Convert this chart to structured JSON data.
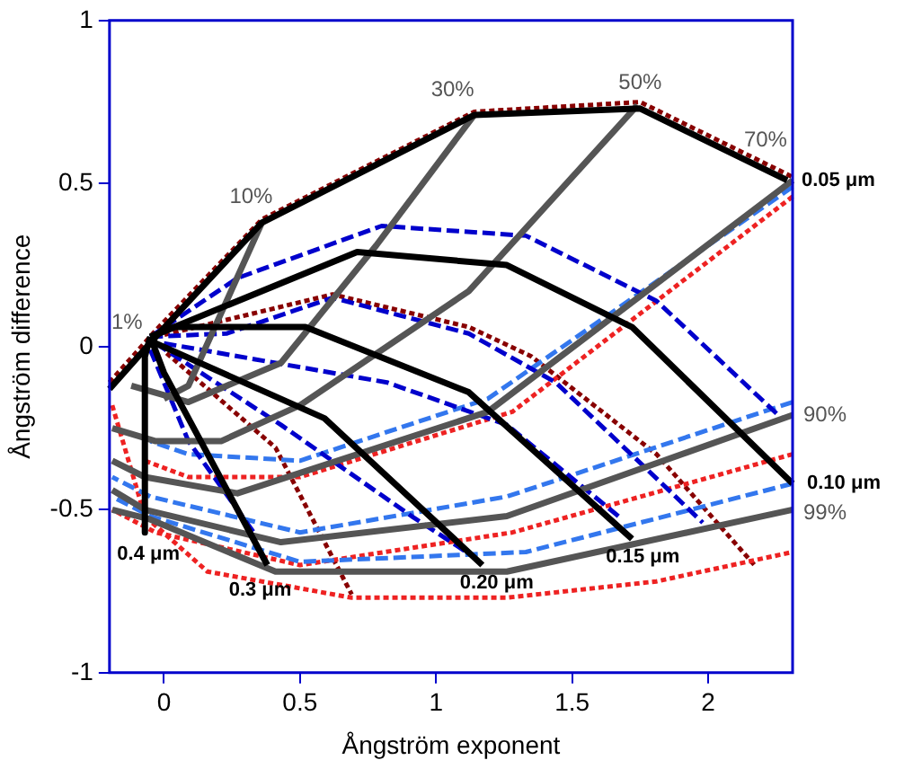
{
  "chart_data": {
    "type": "line",
    "xlabel": "Ångström exponent",
    "ylabel": "Ångström difference",
    "xlim": [
      -0.2,
      2.31
    ],
    "ylim": [
      -1,
      1
    ],
    "xticks": [
      0,
      0.5,
      1,
      1.5,
      2
    ],
    "yticks": [
      -1,
      -0.5,
      0,
      0.5,
      1
    ],
    "grid": false,
    "legend": false,
    "marker": "none",
    "series": [
      {
        "color": "#000000",
        "line_style": "solid",
        "x": [
          -0.2,
          -0.03,
          0.36,
          1.14,
          1.75,
          2.29
        ],
        "values": [
          -0.13,
          0.03,
          0.38,
          0.71,
          0.73,
          0.51
        ]
      },
      {
        "color": "#000000",
        "line_style": "solid",
        "x": [
          -0.05,
          0.71,
          1.26,
          1.72,
          2.31
        ],
        "values": [
          0.03,
          0.29,
          0.25,
          0.06,
          -0.42
        ]
      },
      {
        "color": "#000000",
        "line_style": "solid",
        "x": [
          -0.05,
          0.04,
          0.52,
          1.12,
          1.72
        ],
        "values": [
          0.03,
          0.06,
          0.06,
          -0.14,
          -0.59
        ]
      },
      {
        "color": "#000000",
        "line_style": "solid",
        "x": [
          -0.05,
          -0.03,
          0.59,
          1.17
        ],
        "values": [
          0.03,
          0.01,
          -0.22,
          -0.67
        ]
      },
      {
        "color": "#000000",
        "line_style": "solid",
        "x": [
          -0.05,
          0,
          0.38
        ],
        "values": [
          0.03,
          -0.08,
          -0.67
        ]
      },
      {
        "color": "#000000",
        "line_style": "solid",
        "x": [
          -0.05,
          -0.07,
          -0.07
        ],
        "values": [
          0.03,
          -0.03,
          -0.57
        ]
      },
      {
        "color": "#555555",
        "line_style": "solid",
        "x": [
          0.36,
          0.09,
          0
        ],
        "values": [
          0.38,
          -0.12,
          -0.16
        ]
      },
      {
        "color": "#555555",
        "line_style": "solid",
        "x": [
          1.14,
          0.78,
          0.43,
          0.09,
          -0.12
        ],
        "values": [
          0.71,
          0.31,
          -0.05,
          -0.17,
          -0.12
        ]
      },
      {
        "color": "#555555",
        "line_style": "solid",
        "x": [
          1.74,
          1.12,
          0.5,
          0.21,
          -0.03,
          -0.19
        ],
        "values": [
          0.74,
          0.17,
          -0.18,
          -0.29,
          -0.29,
          -0.25
        ]
      },
      {
        "color": "#555555",
        "line_style": "solid",
        "x": [
          2.31,
          1.19,
          0.27,
          -0.07,
          -0.19
        ],
        "values": [
          0.51,
          -0.2,
          -0.45,
          -0.4,
          -0.35
        ]
      },
      {
        "color": "#555555",
        "line_style": "solid",
        "x": [
          2.31,
          1.26,
          0.43,
          -0.07,
          -0.19
        ],
        "values": [
          -0.21,
          -0.52,
          -0.6,
          -0.5,
          -0.44
        ]
      },
      {
        "color": "#555555",
        "line_style": "solid",
        "x": [
          2.31,
          1.26,
          0.41,
          -0.05,
          -0.19
        ],
        "values": [
          -0.5,
          -0.69,
          -0.69,
          -0.53,
          -0.5
        ]
      },
      {
        "color": "#0000cc",
        "line_style": "dashed",
        "x": [
          -0.05,
          0.27,
          0.8,
          1.33,
          1.81,
          2.27
        ],
        "values": [
          0.03,
          0.21,
          0.37,
          0.34,
          0.14,
          -0.22
        ]
      },
      {
        "color": "#0000cc",
        "line_style": "dashed",
        "x": [
          -0.05,
          0.23,
          0.62,
          1.12,
          1.44,
          1.88,
          1.98
        ],
        "values": [
          0.03,
          0.04,
          0.15,
          0.04,
          -0.11,
          -0.46,
          -0.54
        ]
      },
      {
        "color": "#0000cc",
        "line_style": "dashed",
        "x": [
          0,
          0.82,
          1.26,
          1.67
        ],
        "values": [
          0.01,
          -0.11,
          -0.24,
          -0.52
        ]
      },
      {
        "color": "#0000cc",
        "line_style": "dashed",
        "x": [
          -0.03,
          0.43,
          0.91,
          1.13
        ],
        "values": [
          0.01,
          -0.24,
          -0.52,
          -0.64
        ]
      },
      {
        "color": "#0000cc",
        "line_style": "dashed",
        "x": [
          -0.05,
          0.09,
          0.33
        ],
        "values": [
          -0.01,
          -0.29,
          -0.57
        ]
      },
      {
        "color": "#3377ee",
        "line_style": "dashed",
        "x": [
          2.31,
          1.19,
          0.5,
          0.09,
          -0.05
        ],
        "values": [
          0.49,
          -0.16,
          -0.35,
          -0.33,
          -0.29
        ]
      },
      {
        "color": "#3377ee",
        "line_style": "dashed",
        "x": [
          2.31,
          1.26,
          0.5,
          -0.05,
          -0.19
        ],
        "values": [
          -0.17,
          -0.46,
          -0.57,
          -0.46,
          -0.4
        ]
      },
      {
        "color": "#3377ee",
        "line_style": "dashed",
        "x": [
          2.31,
          1.33,
          0.5,
          -0.05,
          -0.19
        ],
        "values": [
          -0.42,
          -0.63,
          -0.66,
          -0.52,
          -0.46
        ]
      },
      {
        "color": "#ee2222",
        "line_style": "dotted",
        "x": [
          2.31,
          1.28,
          0.5,
          0.09,
          -0.07
        ],
        "values": [
          0.46,
          -0.2,
          -0.4,
          -0.4,
          -0.35
        ]
      },
      {
        "color": "#ee2222",
        "line_style": "dotted",
        "x": [
          2.31,
          1.28,
          0.5,
          -0.03,
          -0.19
        ],
        "values": [
          -0.33,
          -0.57,
          -0.67,
          -0.57,
          -0.5
        ]
      },
      {
        "color": "#ee2222",
        "line_style": "dotted",
        "x": [
          -0.19,
          -0.07,
          0.16,
          0.69,
          1.26,
          1.81,
          2.31
        ],
        "values": [
          -0.18,
          -0.52,
          -0.69,
          -0.77,
          -0.77,
          -0.72,
          -0.63
        ]
      },
      {
        "color": "#880000",
        "line_style": "dotted",
        "x": [
          -0.2,
          -0.03,
          0.36,
          1.14,
          1.75,
          2.31
        ],
        "values": [
          -0.11,
          0.05,
          0.39,
          0.72,
          0.75,
          0.52
        ]
      },
      {
        "color": "#880000",
        "line_style": "dotted",
        "x": [
          -0.03,
          0.62,
          1.12,
          1.35,
          1.81,
          2.17
        ],
        "values": [
          0.03,
          0.16,
          0.06,
          -0.03,
          -0.33,
          -0.67
        ]
      },
      {
        "color": "#880000",
        "line_style": "dotted",
        "x": [
          0.01,
          0.41,
          0.69
        ],
        "values": [
          -0.02,
          -0.31,
          -0.76
        ]
      }
    ],
    "annotations": [
      {
        "text": "1%",
        "x": -0.03,
        "y": 0.03
      },
      {
        "text": "10%",
        "x": 0.36,
        "y": 0.38
      },
      {
        "text": "30%",
        "x": 1.14,
        "y": 0.71
      },
      {
        "text": "50%",
        "x": 1.75,
        "y": 0.73
      },
      {
        "text": "70%",
        "x": 2.29,
        "y": 0.51
      },
      {
        "text": "90%",
        "x": 2.31,
        "y": -0.21
      },
      {
        "text": "99%",
        "x": 2.31,
        "y": -0.5
      },
      {
        "text": "0.05 μm",
        "x": 2.29,
        "y": 0.51
      },
      {
        "text": "0.10 μm",
        "x": 2.31,
        "y": -0.42
      },
      {
        "text": "0.4 μm",
        "x": -0.07,
        "y": -0.57
      },
      {
        "text": "0.3 μm",
        "x": 0.38,
        "y": -0.67
      },
      {
        "text": "0.20 μm",
        "x": 1.17,
        "y": -0.67
      },
      {
        "text": "0.15 μm",
        "x": 1.72,
        "y": -0.59
      }
    ]
  }
}
